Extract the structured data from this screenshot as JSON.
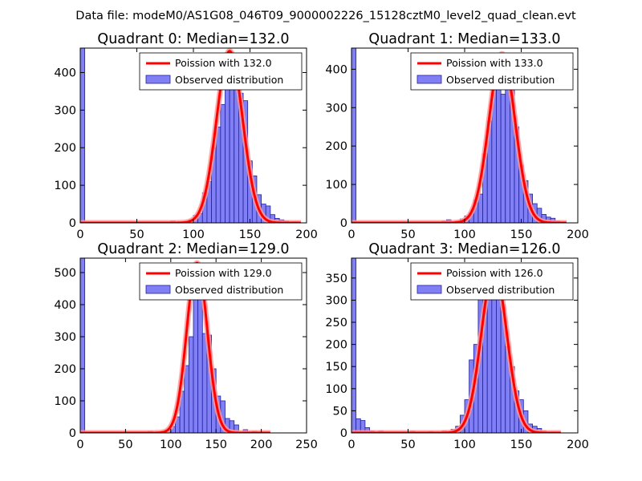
{
  "figure": {
    "title": "Data file: modeM0/AS1G08_046T09_9000002226_15128cztM0_level2_quad_clean.evt"
  },
  "colors": {
    "bar_fill": "#8080f4",
    "bar_edge": "#2020a0",
    "curve": "#ff0000",
    "curve_halo": "#ff9a9a"
  },
  "chart_data": [
    {
      "type": "bar",
      "title": "Quadrant 0: Median=132.0",
      "xlim": [
        0,
        200
      ],
      "ylim": [
        0,
        465
      ],
      "xticks": [
        0,
        50,
        100,
        150,
        200
      ],
      "yticks": [
        0,
        100,
        200,
        300,
        400
      ],
      "bin_width": 4,
      "bars": [
        {
          "x": 0,
          "h": 465
        },
        {
          "x": 80,
          "h": 5
        },
        {
          "x": 92,
          "h": 3
        },
        {
          "x": 96,
          "h": 8
        },
        {
          "x": 100,
          "h": 20
        },
        {
          "x": 104,
          "h": 25
        },
        {
          "x": 108,
          "h": 80
        },
        {
          "x": 112,
          "h": 110
        },
        {
          "x": 116,
          "h": 200
        },
        {
          "x": 120,
          "h": 255
        },
        {
          "x": 124,
          "h": 315
        },
        {
          "x": 128,
          "h": 380
        },
        {
          "x": 132,
          "h": 445
        },
        {
          "x": 136,
          "h": 400
        },
        {
          "x": 140,
          "h": 345
        },
        {
          "x": 144,
          "h": 325
        },
        {
          "x": 148,
          "h": 165
        },
        {
          "x": 152,
          "h": 125
        },
        {
          "x": 156,
          "h": 75
        },
        {
          "x": 160,
          "h": 50
        },
        {
          "x": 164,
          "h": 45
        },
        {
          "x": 168,
          "h": 22
        },
        {
          "x": 172,
          "h": 12
        },
        {
          "x": 176,
          "h": 8
        },
        {
          "x": 180,
          "h": 5
        },
        {
          "x": 188,
          "h": 3
        }
      ],
      "curve": {
        "mu": 132.0,
        "scale": 457,
        "x_range": [
          0,
          195
        ]
      },
      "legend": {
        "curve_label": "Poission with 132.0",
        "hist_label": "Observed distribution",
        "loc": "upper right"
      }
    },
    {
      "type": "bar",
      "title": "Quadrant 1: Median=133.0",
      "xlim": [
        0,
        200
      ],
      "ylim": [
        0,
        455
      ],
      "xticks": [
        0,
        50,
        100,
        150,
        200
      ],
      "yticks": [
        0,
        100,
        200,
        300,
        400
      ],
      "bin_width": 4,
      "bars": [
        {
          "x": 0,
          "h": 455
        },
        {
          "x": 80,
          "h": 5
        },
        {
          "x": 84,
          "h": 8
        },
        {
          "x": 92,
          "h": 5
        },
        {
          "x": 96,
          "h": 10
        },
        {
          "x": 100,
          "h": 18
        },
        {
          "x": 104,
          "h": 25
        },
        {
          "x": 108,
          "h": 60
        },
        {
          "x": 112,
          "h": 75
        },
        {
          "x": 116,
          "h": 180
        },
        {
          "x": 120,
          "h": 265
        },
        {
          "x": 124,
          "h": 345
        },
        {
          "x": 128,
          "h": 410
        },
        {
          "x": 132,
          "h": 335
        },
        {
          "x": 136,
          "h": 430
        },
        {
          "x": 140,
          "h": 355
        },
        {
          "x": 144,
          "h": 250
        },
        {
          "x": 148,
          "h": 150
        },
        {
          "x": 152,
          "h": 110
        },
        {
          "x": 156,
          "h": 75
        },
        {
          "x": 160,
          "h": 50
        },
        {
          "x": 164,
          "h": 38
        },
        {
          "x": 168,
          "h": 22
        },
        {
          "x": 172,
          "h": 15
        },
        {
          "x": 176,
          "h": 12
        },
        {
          "x": 180,
          "h": 5
        }
      ],
      "curve": {
        "mu": 133.0,
        "scale": 440,
        "x_range": [
          0,
          190
        ]
      },
      "legend": {
        "curve_label": "Poission with 133.0",
        "hist_label": "Observed distribution",
        "loc": "upper right"
      }
    },
    {
      "type": "bar",
      "title": "Quadrant 2: Median=129.0",
      "xlim": [
        0,
        250
      ],
      "ylim": [
        0,
        545
      ],
      "xticks": [
        0,
        50,
        100,
        150,
        200,
        250
      ],
      "yticks": [
        0,
        100,
        200,
        300,
        400,
        500
      ],
      "bin_width": 5,
      "bars": [
        {
          "x": 0,
          "h": 545
        },
        {
          "x": 75,
          "h": 5
        },
        {
          "x": 90,
          "h": 5
        },
        {
          "x": 95,
          "h": 8
        },
        {
          "x": 100,
          "h": 20
        },
        {
          "x": 105,
          "h": 50
        },
        {
          "x": 110,
          "h": 130
        },
        {
          "x": 115,
          "h": 210
        },
        {
          "x": 120,
          "h": 300
        },
        {
          "x": 125,
          "h": 480
        },
        {
          "x": 130,
          "h": 465
        },
        {
          "x": 135,
          "h": 310
        },
        {
          "x": 140,
          "h": 305
        },
        {
          "x": 145,
          "h": 200
        },
        {
          "x": 150,
          "h": 115
        },
        {
          "x": 155,
          "h": 100
        },
        {
          "x": 160,
          "h": 45
        },
        {
          "x": 165,
          "h": 38
        },
        {
          "x": 170,
          "h": 25
        },
        {
          "x": 180,
          "h": 10
        },
        {
          "x": 190,
          "h": 5
        }
      ],
      "curve": {
        "mu": 129.0,
        "scale": 530,
        "x_range": [
          0,
          210
        ]
      },
      "legend": {
        "curve_label": "Poission with 129.0",
        "hist_label": "Observed distribution",
        "loc": "upper right"
      }
    },
    {
      "type": "bar",
      "title": "Quadrant 3: Median=126.0",
      "xlim": [
        0,
        200
      ],
      "ylim": [
        0,
        395
      ],
      "xticks": [
        0,
        50,
        100,
        150,
        200
      ],
      "yticks": [
        0,
        50,
        100,
        150,
        200,
        250,
        300,
        350
      ],
      "bin_width": 4,
      "bars": [
        {
          "x": 0,
          "h": 395
        },
        {
          "x": 4,
          "h": 32
        },
        {
          "x": 8,
          "h": 28
        },
        {
          "x": 12,
          "h": 12
        },
        {
          "x": 16,
          "h": 5
        },
        {
          "x": 24,
          "h": 5
        },
        {
          "x": 52,
          "h": 4
        },
        {
          "x": 68,
          "h": 3
        },
        {
          "x": 80,
          "h": 5
        },
        {
          "x": 88,
          "h": 8
        },
        {
          "x": 92,
          "h": 15
        },
        {
          "x": 96,
          "h": 40
        },
        {
          "x": 100,
          "h": 75
        },
        {
          "x": 104,
          "h": 165
        },
        {
          "x": 108,
          "h": 200
        },
        {
          "x": 112,
          "h": 320
        },
        {
          "x": 116,
          "h": 335
        },
        {
          "x": 120,
          "h": 360
        },
        {
          "x": 124,
          "h": 345
        },
        {
          "x": 128,
          "h": 330
        },
        {
          "x": 132,
          "h": 290
        },
        {
          "x": 136,
          "h": 195
        },
        {
          "x": 140,
          "h": 150
        },
        {
          "x": 144,
          "h": 95
        },
        {
          "x": 148,
          "h": 75
        },
        {
          "x": 152,
          "h": 50
        },
        {
          "x": 156,
          "h": 20
        },
        {
          "x": 160,
          "h": 15
        },
        {
          "x": 164,
          "h": 10
        },
        {
          "x": 168,
          "h": 5
        }
      ],
      "curve": {
        "mu": 126.0,
        "scale": 372,
        "x_range": [
          0,
          185
        ]
      },
      "legend": {
        "curve_label": "Poission with 126.0",
        "hist_label": "Observed distribution",
        "loc": "upper right"
      }
    }
  ]
}
